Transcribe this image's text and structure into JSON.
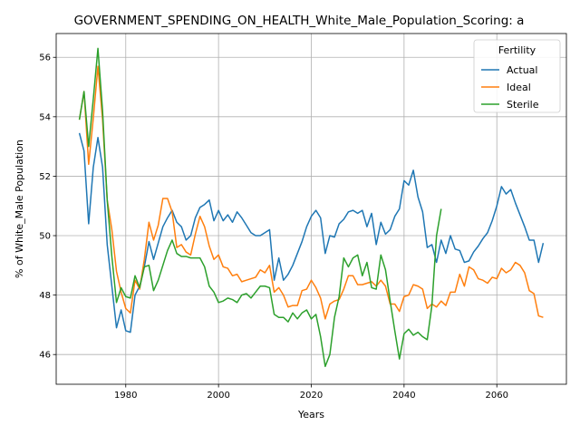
{
  "chart_data": {
    "type": "line",
    "title": "GOVERNMENT_SPENDING_ON_HEALTH_White_Male_Population_Scoring: a",
    "xlabel": "Years",
    "ylabel": "% of White_Male Population",
    "xlim": [
      1965,
      2075
    ],
    "ylim": [
      45,
      56.8
    ],
    "x_ticks": [
      1980,
      2000,
      2020,
      2040,
      2060
    ],
    "y_ticks": [
      46,
      48,
      50,
      52,
      54,
      56
    ],
    "grid": true,
    "legend": {
      "title": "Fertility",
      "placement": "top-right"
    },
    "series": [
      {
        "name": "Actual",
        "color": "#1f77b4",
        "points": [
          [
            1970,
            53.45
          ],
          [
            1971,
            52.85
          ],
          [
            1972,
            50.4
          ],
          [
            1973,
            52.3
          ],
          [
            1974,
            53.3
          ],
          [
            1975,
            52.3
          ],
          [
            1976,
            49.7
          ],
          [
            1977,
            48.3
          ],
          [
            1978,
            46.9
          ],
          [
            1979,
            47.5
          ],
          [
            1980,
            46.8
          ],
          [
            1981,
            46.75
          ],
          [
            1982,
            48.0
          ],
          [
            1983,
            48.3
          ],
          [
            1984,
            48.95
          ],
          [
            1985,
            49.8
          ],
          [
            1986,
            49.2
          ],
          [
            1987,
            49.75
          ],
          [
            1988,
            50.3
          ],
          [
            1989,
            50.6
          ],
          [
            1990,
            50.85
          ],
          [
            1991,
            50.45
          ],
          [
            1992,
            50.3
          ],
          [
            1993,
            49.85
          ],
          [
            1994,
            50.0
          ],
          [
            1995,
            50.6
          ],
          [
            1996,
            50.95
          ],
          [
            1997,
            51.05
          ],
          [
            1998,
            51.2
          ],
          [
            1999,
            50.5
          ],
          [
            2000,
            50.85
          ],
          [
            2001,
            50.5
          ],
          [
            2002,
            50.7
          ],
          [
            2003,
            50.45
          ],
          [
            2004,
            50.8
          ],
          [
            2005,
            50.6
          ],
          [
            2006,
            50.35
          ],
          [
            2007,
            50.1
          ],
          [
            2008,
            50.0
          ],
          [
            2009,
            50.0
          ],
          [
            2010,
            50.1
          ],
          [
            2011,
            50.2
          ],
          [
            2012,
            48.5
          ],
          [
            2013,
            49.25
          ],
          [
            2014,
            48.5
          ],
          [
            2015,
            48.7
          ],
          [
            2016,
            49.0
          ],
          [
            2017,
            49.4
          ],
          [
            2018,
            49.8
          ],
          [
            2019,
            50.3
          ],
          [
            2020,
            50.65
          ],
          [
            2021,
            50.85
          ],
          [
            2022,
            50.6
          ],
          [
            2023,
            49.4
          ],
          [
            2024,
            50.0
          ],
          [
            2025,
            49.95
          ],
          [
            2026,
            50.4
          ],
          [
            2027,
            50.55
          ],
          [
            2028,
            50.8
          ],
          [
            2029,
            50.85
          ],
          [
            2030,
            50.75
          ],
          [
            2031,
            50.85
          ],
          [
            2032,
            50.3
          ],
          [
            2033,
            50.75
          ],
          [
            2034,
            49.7
          ],
          [
            2035,
            50.45
          ],
          [
            2036,
            50.05
          ],
          [
            2037,
            50.2
          ],
          [
            2038,
            50.65
          ],
          [
            2039,
            50.9
          ],
          [
            2040,
            51.85
          ],
          [
            2041,
            51.7
          ],
          [
            2042,
            52.2
          ],
          [
            2043,
            51.3
          ],
          [
            2044,
            50.8
          ],
          [
            2045,
            49.6
          ],
          [
            2046,
            49.7
          ],
          [
            2047,
            49.1
          ],
          [
            2048,
            49.85
          ],
          [
            2049,
            49.4
          ],
          [
            2050,
            50.0
          ],
          [
            2051,
            49.55
          ],
          [
            2052,
            49.5
          ],
          [
            2053,
            49.1
          ],
          [
            2054,
            49.15
          ],
          [
            2055,
            49.45
          ],
          [
            2056,
            49.65
          ],
          [
            2057,
            49.9
          ],
          [
            2058,
            50.1
          ],
          [
            2059,
            50.5
          ],
          [
            2060,
            51.0
          ],
          [
            2061,
            51.65
          ],
          [
            2062,
            51.4
          ],
          [
            2063,
            51.55
          ],
          [
            2064,
            51.1
          ],
          [
            2065,
            50.7
          ],
          [
            2066,
            50.3
          ],
          [
            2067,
            49.85
          ],
          [
            2068,
            49.85
          ],
          [
            2069,
            49.1
          ],
          [
            2070,
            49.75
          ]
        ]
      },
      {
        "name": "Ideal",
        "color": "#ff7f0e",
        "points": [
          [
            1970,
            53.9
          ],
          [
            1971,
            54.85
          ],
          [
            1972,
            52.4
          ],
          [
            1973,
            53.95
          ],
          [
            1974,
            55.7
          ],
          [
            1975,
            53.9
          ],
          [
            1976,
            51.2
          ],
          [
            1977,
            50.2
          ],
          [
            1978,
            48.8
          ],
          [
            1979,
            48.1
          ],
          [
            1980,
            47.55
          ],
          [
            1981,
            47.4
          ],
          [
            1982,
            48.5
          ],
          [
            1983,
            48.2
          ],
          [
            1984,
            49.2
          ],
          [
            1985,
            50.45
          ],
          [
            1986,
            49.85
          ],
          [
            1987,
            50.35
          ],
          [
            1988,
            51.25
          ],
          [
            1989,
            51.25
          ],
          [
            1990,
            50.8
          ],
          [
            1991,
            49.6
          ],
          [
            1992,
            49.7
          ],
          [
            1993,
            49.45
          ],
          [
            1994,
            49.35
          ],
          [
            1995,
            50.05
          ],
          [
            1996,
            50.65
          ],
          [
            1997,
            50.3
          ],
          [
            1998,
            49.65
          ],
          [
            1999,
            49.2
          ],
          [
            2000,
            49.35
          ],
          [
            2001,
            48.95
          ],
          [
            2002,
            48.9
          ],
          [
            2003,
            48.65
          ],
          [
            2004,
            48.7
          ],
          [
            2005,
            48.45
          ],
          [
            2006,
            48.5
          ],
          [
            2007,
            48.55
          ],
          [
            2008,
            48.6
          ],
          [
            2009,
            48.85
          ],
          [
            2010,
            48.75
          ],
          [
            2011,
            49.0
          ],
          [
            2012,
            48.1
          ],
          [
            2013,
            48.25
          ],
          [
            2014,
            48.0
          ],
          [
            2015,
            47.6
          ],
          [
            2016,
            47.65
          ],
          [
            2017,
            47.65
          ],
          [
            2018,
            48.15
          ],
          [
            2019,
            48.2
          ],
          [
            2020,
            48.5
          ],
          [
            2021,
            48.25
          ],
          [
            2022,
            47.9
          ],
          [
            2023,
            47.2
          ],
          [
            2024,
            47.7
          ],
          [
            2025,
            47.8
          ],
          [
            2026,
            47.85
          ],
          [
            2027,
            48.2
          ],
          [
            2028,
            48.65
          ],
          [
            2029,
            48.65
          ],
          [
            2030,
            48.35
          ],
          [
            2031,
            48.35
          ],
          [
            2032,
            48.4
          ],
          [
            2033,
            48.45
          ],
          [
            2034,
            48.3
          ],
          [
            2035,
            48.5
          ],
          [
            2036,
            48.3
          ],
          [
            2037,
            47.7
          ],
          [
            2038,
            47.7
          ],
          [
            2039,
            47.45
          ],
          [
            2040,
            47.95
          ],
          [
            2041,
            48.0
          ],
          [
            2042,
            48.35
          ],
          [
            2043,
            48.3
          ],
          [
            2044,
            48.2
          ],
          [
            2045,
            47.55
          ],
          [
            2046,
            47.7
          ],
          [
            2047,
            47.6
          ],
          [
            2048,
            47.8
          ],
          [
            2049,
            47.65
          ],
          [
            2050,
            48.1
          ],
          [
            2051,
            48.1
          ],
          [
            2052,
            48.7
          ],
          [
            2053,
            48.3
          ],
          [
            2054,
            48.95
          ],
          [
            2055,
            48.85
          ],
          [
            2056,
            48.55
          ],
          [
            2057,
            48.5
          ],
          [
            2058,
            48.4
          ],
          [
            2059,
            48.6
          ],
          [
            2060,
            48.55
          ],
          [
            2061,
            48.9
          ],
          [
            2062,
            48.75
          ],
          [
            2063,
            48.85
          ],
          [
            2064,
            49.1
          ],
          [
            2065,
            49.0
          ],
          [
            2066,
            48.75
          ],
          [
            2067,
            48.15
          ],
          [
            2068,
            48.05
          ],
          [
            2069,
            47.3
          ],
          [
            2070,
            47.25
          ]
        ]
      },
      {
        "name": "Sterile",
        "color": "#2ca02c",
        "points": [
          [
            1970,
            53.9
          ],
          [
            1971,
            54.85
          ],
          [
            1972,
            53.0
          ],
          [
            1973,
            54.6
          ],
          [
            1974,
            56.3
          ],
          [
            1975,
            54.2
          ],
          [
            1976,
            51.2
          ],
          [
            1977,
            49.3
          ],
          [
            1978,
            47.75
          ],
          [
            1979,
            48.25
          ],
          [
            1980,
            47.95
          ],
          [
            1981,
            47.9
          ],
          [
            1982,
            48.65
          ],
          [
            1983,
            48.25
          ],
          [
            1984,
            48.95
          ],
          [
            1985,
            49.0
          ],
          [
            1986,
            48.15
          ],
          [
            1987,
            48.5
          ],
          [
            1988,
            49.0
          ],
          [
            1989,
            49.5
          ],
          [
            1990,
            49.85
          ],
          [
            1991,
            49.4
          ],
          [
            1992,
            49.3
          ],
          [
            1993,
            49.3
          ],
          [
            1994,
            49.25
          ],
          [
            1995,
            49.25
          ],
          [
            1996,
            49.25
          ],
          [
            1997,
            48.95
          ],
          [
            1998,
            48.3
          ],
          [
            1999,
            48.1
          ],
          [
            2000,
            47.75
          ],
          [
            2001,
            47.8
          ],
          [
            2002,
            47.9
          ],
          [
            2003,
            47.85
          ],
          [
            2004,
            47.75
          ],
          [
            2005,
            48.0
          ],
          [
            2006,
            48.05
          ],
          [
            2007,
            47.9
          ],
          [
            2008,
            48.1
          ],
          [
            2009,
            48.3
          ],
          [
            2010,
            48.3
          ],
          [
            2011,
            48.25
          ],
          [
            2012,
            47.35
          ],
          [
            2013,
            47.25
          ],
          [
            2014,
            47.25
          ],
          [
            2015,
            47.1
          ],
          [
            2016,
            47.4
          ],
          [
            2017,
            47.2
          ],
          [
            2018,
            47.4
          ],
          [
            2019,
            47.5
          ],
          [
            2020,
            47.2
          ],
          [
            2021,
            47.35
          ],
          [
            2022,
            46.6
          ],
          [
            2023,
            45.6
          ],
          [
            2024,
            46.0
          ],
          [
            2025,
            47.25
          ],
          [
            2026,
            47.95
          ],
          [
            2027,
            49.25
          ],
          [
            2028,
            48.95
          ],
          [
            2029,
            49.25
          ],
          [
            2030,
            49.35
          ],
          [
            2031,
            48.65
          ],
          [
            2032,
            49.1
          ],
          [
            2033,
            48.25
          ],
          [
            2034,
            48.2
          ],
          [
            2035,
            49.35
          ],
          [
            2036,
            48.85
          ],
          [
            2037,
            47.8
          ],
          [
            2038,
            46.8
          ],
          [
            2039,
            45.85
          ],
          [
            2040,
            46.7
          ],
          [
            2041,
            46.85
          ],
          [
            2042,
            46.65
          ],
          [
            2043,
            46.75
          ],
          [
            2044,
            46.6
          ],
          [
            2045,
            46.5
          ],
          [
            2046,
            47.65
          ],
          [
            2047,
            50.0
          ],
          [
            2048,
            50.9
          ]
        ]
      }
    ]
  }
}
